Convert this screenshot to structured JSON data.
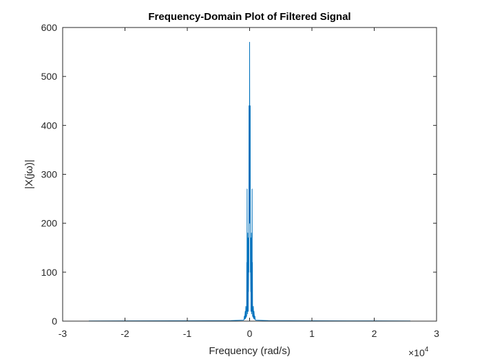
{
  "chart_data": {
    "type": "line",
    "title": "Frequency-Domain Plot of Filtered Signal",
    "xlabel": "Frequency (rad/s)",
    "ylabel": "|X(jω)|",
    "x_exponent_prefix": "×10",
    "x_exponent_power": "4",
    "xlim": [
      -3,
      3
    ],
    "ylim": [
      0,
      600
    ],
    "x_scale_factor": 10000,
    "xticks": [
      -3,
      -2,
      -1,
      0,
      1,
      2,
      3
    ],
    "xtick_labels": [
      "-3",
      "-2",
      "-1",
      "0",
      "1",
      "2",
      "3"
    ],
    "yticks": [
      0,
      100,
      200,
      300,
      400,
      500,
      600
    ],
    "ytick_labels": [
      "0",
      "100",
      "200",
      "300",
      "400",
      "500",
      "600"
    ],
    "grid": false,
    "series": [
      {
        "color": "#0072BD",
        "x": [
          -25800,
          -20000,
          -10000,
          -3000,
          -1000,
          -900,
          -850,
          -800,
          -700,
          -650,
          -600,
          -550,
          -500,
          -480,
          -450,
          -420,
          -400,
          -380,
          -350,
          -320,
          -300,
          -280,
          -250,
          -220,
          -200,
          -180,
          -150,
          -120,
          -100,
          -60,
          -30,
          0,
          30,
          60,
          100,
          120,
          150,
          180,
          200,
          220,
          250,
          280,
          300,
          320,
          350,
          380,
          400,
          420,
          450,
          480,
          500,
          550,
          600,
          650,
          700,
          800,
          850,
          900,
          1000,
          3000,
          10000,
          20000,
          25800
        ],
        "y": [
          0.3,
          0.5,
          0.7,
          1,
          2,
          3,
          10,
          4,
          20,
          5,
          30,
          8,
          25,
          10,
          120,
          30,
          270,
          20,
          100,
          15,
          180,
          40,
          150,
          20,
          170,
          60,
          120,
          100,
          440,
          200,
          300,
          570,
          300,
          200,
          440,
          100,
          120,
          60,
          170,
          20,
          150,
          40,
          180,
          15,
          100,
          20,
          270,
          30,
          120,
          10,
          25,
          8,
          30,
          5,
          20,
          4,
          10,
          3,
          2,
          1,
          0.7,
          0.5,
          0.3
        ]
      }
    ]
  }
}
